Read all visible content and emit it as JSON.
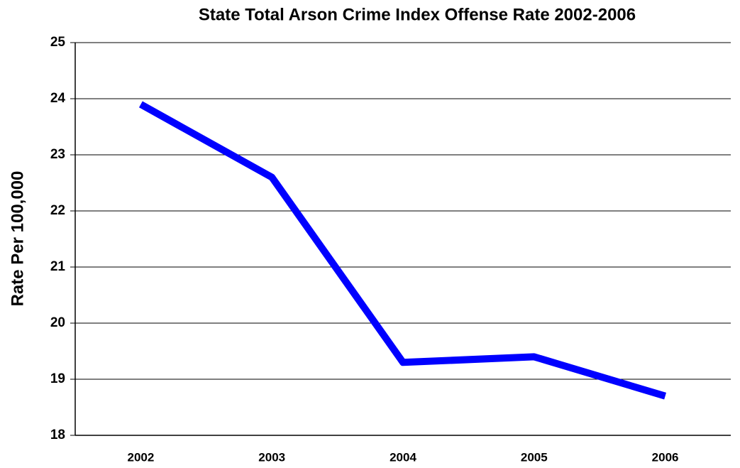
{
  "chart_data": {
    "type": "line",
    "title": "State Total Arson Crime Index Offense Rate 2002-2006",
    "y_label": "Rate Per 100,000",
    "categories": [
      "2002",
      "2003",
      "2004",
      "2005",
      "2006"
    ],
    "values": [
      23.9,
      22.6,
      19.3,
      19.4,
      18.7
    ],
    "color": "#0000ff",
    "ylim": [
      18,
      25
    ],
    "yticks": [
      18,
      19,
      20,
      21,
      22,
      23,
      24,
      25
    ],
    "grid": true
  }
}
